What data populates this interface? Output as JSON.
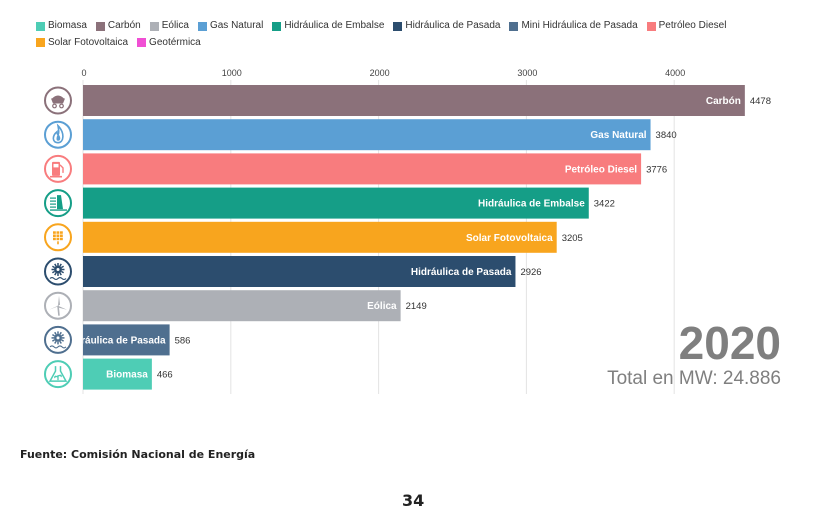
{
  "legend": [
    {
      "label": "Biomasa",
      "color": "#4ecdb5"
    },
    {
      "label": "Carbón",
      "color": "#8b717a"
    },
    {
      "label": "Eólica",
      "color": "#adb0b6"
    },
    {
      "label": "Gas Natural",
      "color": "#5b9fd4"
    },
    {
      "label": "Hidráulica de Embalse",
      "color": "#159e87"
    },
    {
      "label": "Hidráulica de Pasada",
      "color": "#2c4d6e"
    },
    {
      "label": "Mini Hidráulica de Pasada",
      "color": "#4f6f8f"
    },
    {
      "label": "Petróleo Diesel",
      "color": "#f87c7e"
    },
    {
      "label": "Solar Fotovoltaica",
      "color": "#f8a51e"
    },
    {
      "label": "Geotérmica",
      "color": "#f04fd4"
    }
  ],
  "chart_data": {
    "type": "bar",
    "orientation": "horizontal",
    "title": "",
    "xlabel": "",
    "ylabel": "",
    "xlim": [
      0,
      4500
    ],
    "xticks": [
      0,
      1000,
      2000,
      3000,
      4000
    ],
    "grid": true,
    "legend_position": "top",
    "categories": [
      "Carbón",
      "Gas Natural",
      "Petróleo Diesel",
      "Hidráulica de Embalse",
      "Solar Fotovoltaica",
      "Hidráulica de Pasada",
      "Eólica",
      "Mini Hidráulica de Pasada",
      "Biomasa"
    ],
    "bar_text": [
      "Carbón",
      "Gas Natural",
      "Petróleo Diesel",
      "Hidráulica de Embalse",
      "Solar Fotovoltaica",
      "Hidráulica de Pasada",
      "Eólica",
      "ráulica de Pasada",
      "Biomasa"
    ],
    "values": [
      4478,
      3840,
      3776,
      3422,
      3205,
      2926,
      2149,
      586,
      466
    ],
    "colors": [
      "#8b717a",
      "#5b9fd4",
      "#f87c7e",
      "#159e87",
      "#f8a51e",
      "#2c4d6e",
      "#adb0b6",
      "#4f6f8f",
      "#4ecdb5"
    ],
    "icons": [
      "coal-cart-icon",
      "gas-flame-icon",
      "fuel-pump-icon",
      "dam-icon",
      "solar-panel-icon",
      "hydro-turbine-icon",
      "wind-turbine-icon",
      "hydro-turbine-icon",
      "biomass-flask-icon"
    ],
    "annotations": {
      "year": "2020",
      "total": "Total en MW: 24.886"
    }
  },
  "footer": {
    "source": "Fuente: Comisión Nacional de Energía",
    "page_number": "34"
  }
}
